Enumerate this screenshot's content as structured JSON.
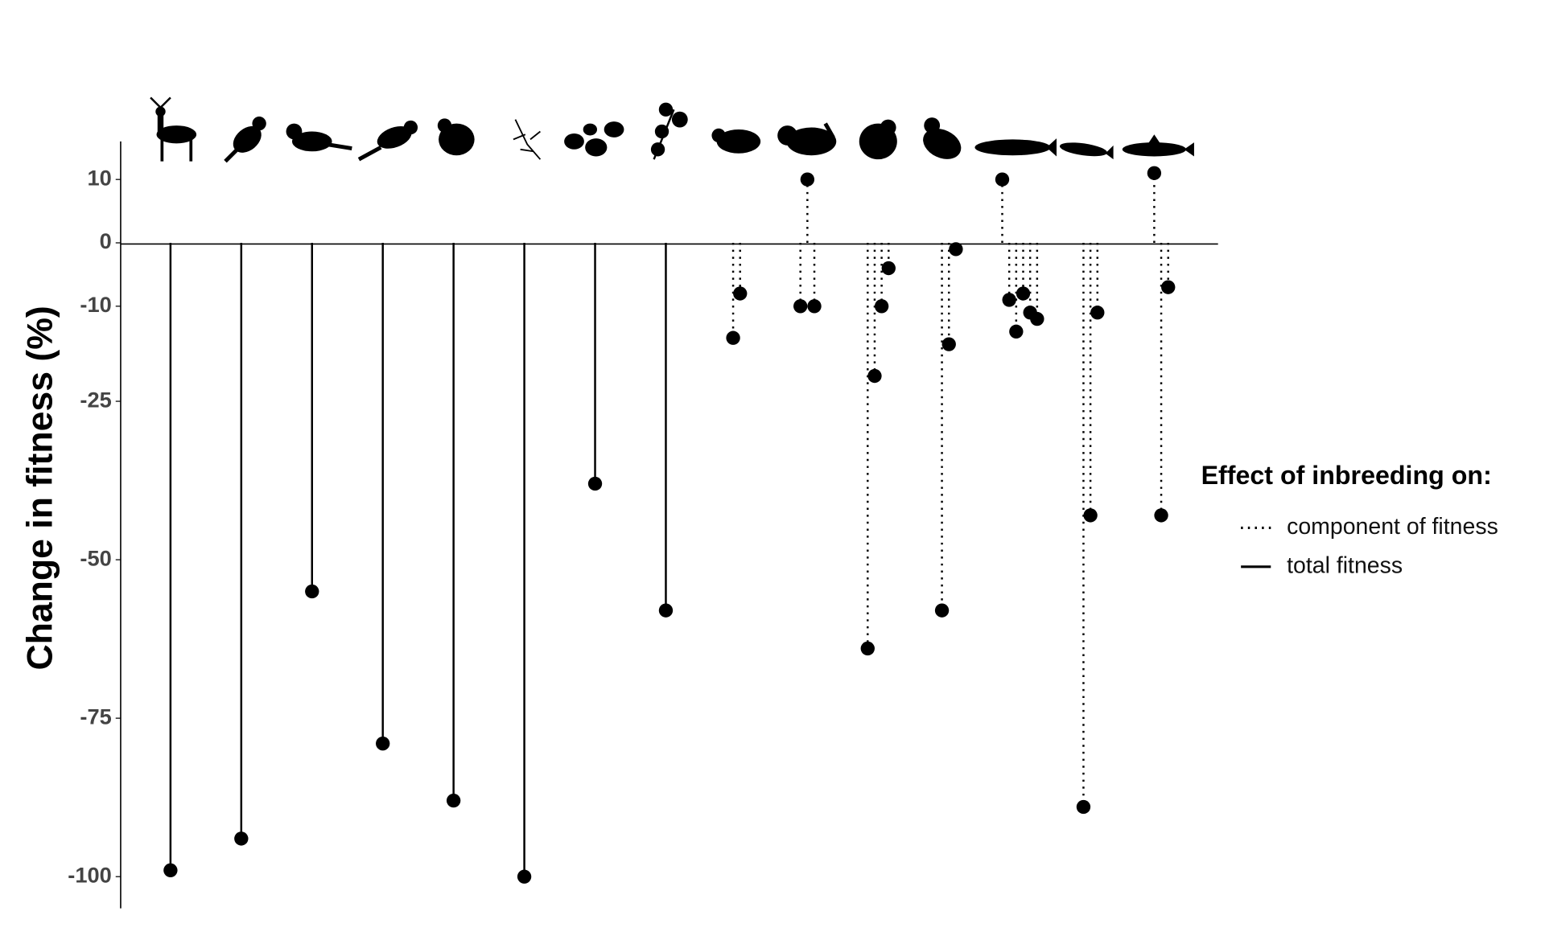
{
  "chart_data": {
    "type": "lollipop",
    "y_label": "Change in fitness (%)",
    "legend_title": "Effect of inbreeding on:",
    "categories": [
      null,
      null,
      null,
      null,
      null,
      null,
      null,
      null,
      null,
      null,
      null,
      null,
      null,
      null,
      null
    ],
    "ylim": [
      -105,
      16
    ],
    "yticks": [
      10,
      0,
      -10,
      -25,
      -50,
      -75,
      -100
    ],
    "series": [
      {
        "name": "component of fitness",
        "dash": "dotted",
        "color": "#000000",
        "values": [
          null,
          null,
          null,
          null,
          null,
          null,
          null,
          null,
          [
            -15,
            -8
          ],
          [
            -10,
            10,
            -10
          ],
          [
            -64,
            -21,
            -10,
            -4
          ],
          [
            -58,
            -16,
            -1
          ],
          [
            10,
            -9,
            -14,
            -8,
            -11,
            -12
          ],
          [
            -89,
            -43,
            -11
          ],
          [
            11,
            -43,
            -7
          ]
        ]
      },
      {
        "name": "total fitness",
        "dash": "solid",
        "color": "#000000",
        "values": [
          -99,
          -94,
          -55,
          -79,
          -88,
          -100,
          -38,
          -58,
          null,
          null,
          null,
          null,
          null,
          null,
          null
        ]
      }
    ]
  }
}
